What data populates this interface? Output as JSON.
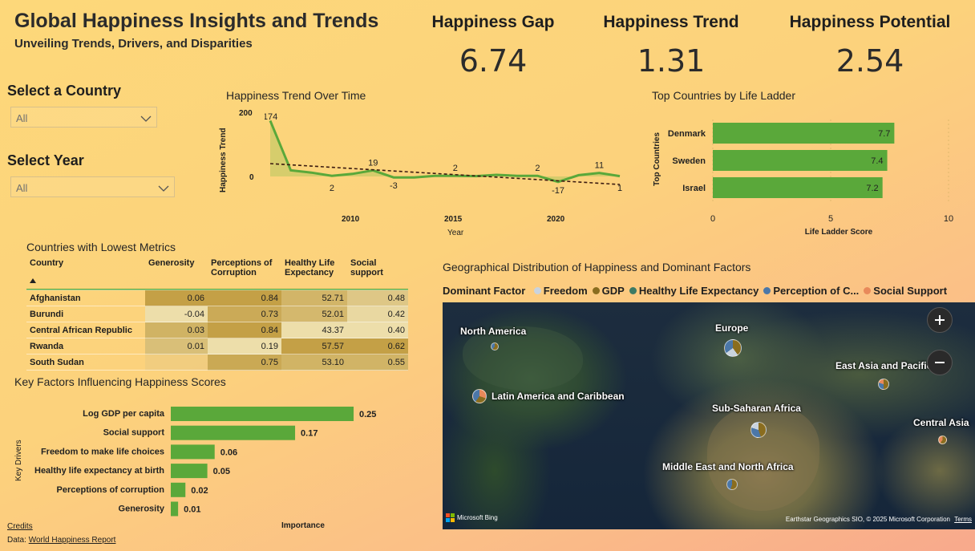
{
  "header": {
    "title": "Global Happiness Insights and Trends",
    "subtitle": "Unveiling Trends, Drivers, and Disparities"
  },
  "kpis": [
    {
      "label": "Happiness Gap",
      "value": "6.74"
    },
    {
      "label": "Happiness Trend",
      "value": "1.31"
    },
    {
      "label": "Happiness Potential",
      "value": "2.54"
    }
  ],
  "slicers": {
    "country": {
      "label": "Select a Country",
      "value": "All"
    },
    "year": {
      "label": "Select Year",
      "value": "All"
    }
  },
  "trend_chart": {
    "title": "Happiness Trend Over Time",
    "ylabel": "Happiness Trend",
    "xlabel": "Year",
    "y_ticks": [
      "200",
      "0"
    ],
    "x_ticks": [
      "2010",
      "2015",
      "2020"
    ]
  },
  "top_countries": {
    "title": "Top Countries by Life Ladder",
    "ylabel": "Top Countries",
    "xlabel": "Life Ladder Score",
    "x_ticks": [
      "0",
      "5",
      "10"
    ]
  },
  "lowest_metrics": {
    "title": "Countries with Lowest Metrics",
    "columns": [
      "Country",
      "Generosity",
      "Perceptions of Corruption",
      "Healthy Life Expectancy",
      "Social support"
    ],
    "column_lines": [
      [
        "Country"
      ],
      [
        "Generosity"
      ],
      [
        "Perceptions of",
        "Corruption"
      ],
      [
        "Healthy Life",
        "Expectancy"
      ],
      [
        "Social",
        "support"
      ]
    ],
    "rows": [
      {
        "country": "Afghanistan",
        "generosity": "0.06",
        "corruption": "0.84",
        "life": "52.71",
        "social": "0.48"
      },
      {
        "country": "Burundi",
        "generosity": "-0.04",
        "corruption": "0.73",
        "life": "52.01",
        "social": "0.42"
      },
      {
        "country": "Central African Republic",
        "generosity": "0.03",
        "corruption": "0.84",
        "life": "43.37",
        "social": "0.40"
      },
      {
        "country": "Rwanda",
        "generosity": "0.01",
        "corruption": "0.19",
        "life": "57.57",
        "social": "0.62"
      },
      {
        "country": "South Sudan",
        "generosity": "",
        "corruption": "0.75",
        "life": "53.10",
        "social": "0.55"
      }
    ]
  },
  "key_factors": {
    "title": "Key Factors Influencing Happiness Scores",
    "ylabel": "Key Drivers",
    "xlabel": "Importance"
  },
  "map_section": {
    "title": "Geographical Distribution of Happiness and Dominant Factors",
    "legend_title": "Dominant Factor",
    "legend": [
      {
        "name": "Freedom",
        "color": "#c9d3de"
      },
      {
        "name": "GDP",
        "color": "#8a6d1f"
      },
      {
        "name": "Healthy Life Expectancy",
        "color": "#3c7a64"
      },
      {
        "name": "Perception of C...",
        "color": "#4b77a8"
      },
      {
        "name": "Social Support",
        "color": "#e8895a"
      }
    ],
    "regions": [
      "North America",
      "Europe",
      "East Asia and Pacific",
      "Latin America and Caribbean",
      "Sub-Saharan Africa",
      "Central Asia",
      "Middle East and North Africa"
    ],
    "provider": "Microsoft Bing",
    "attribution": "Earthstar Geographics SIO, © 2025 Microsoft Corporation",
    "terms": "Terms"
  },
  "footer": {
    "credits": "Credits",
    "data_label": "Data:",
    "data_link": "World Happiness Report"
  },
  "chart_data": [
    {
      "type": "line",
      "title": "Happiness Trend Over Time",
      "xlabel": "Year",
      "ylabel": "Happiness Trend",
      "x": [
        2006,
        2007,
        2008,
        2009,
        2010,
        2011,
        2012,
        2013,
        2014,
        2015,
        2016,
        2017,
        2018,
        2019,
        2020,
        2021,
        2022,
        2023
      ],
      "series": [
        {
          "values": [
            174,
            19,
            12,
            2,
            8,
            19,
            -3,
            -3,
            2,
            2,
            1,
            5,
            2,
            2,
            -17,
            4,
            11,
            1
          ]
        }
      ],
      "data_labels": [
        {
          "x": 2006,
          "label": "174"
        },
        {
          "x": 2009,
          "label": "2"
        },
        {
          "x": 2011,
          "label": "19"
        },
        {
          "x": 2012,
          "label": "-3"
        },
        {
          "x": 2015,
          "label": "2"
        },
        {
          "x": 2019,
          "label": "2"
        },
        {
          "x": 2020,
          "label": "-17"
        },
        {
          "x": 2022,
          "label": "11"
        },
        {
          "x": 2023,
          "label": "1"
        }
      ],
      "trendline": [
        40,
        -25
      ],
      "ylim": [
        -40,
        200
      ],
      "color": "#5aa83a"
    },
    {
      "type": "bar",
      "title": "Top Countries by Life Ladder",
      "orientation": "horizontal",
      "categories": [
        "Denmark",
        "Sweden",
        "Israel"
      ],
      "values": [
        7.7,
        7.4,
        7.2
      ],
      "xlim": [
        0,
        10
      ],
      "xlabel": "Life Ladder Score",
      "ylabel": "Top Countries",
      "color": "#5aa83a"
    },
    {
      "type": "bar",
      "title": "Key Factors Influencing Happiness Scores",
      "orientation": "horizontal",
      "categories": [
        "Log GDP per capita",
        "Social support",
        "Freedom to make life choices",
        "Healthy life expectancy at birth",
        "Perceptions of corruption",
        "Generosity"
      ],
      "values": [
        0.25,
        0.17,
        0.06,
        0.05,
        0.02,
        0.01
      ],
      "xlabel": "Importance",
      "ylabel": "Key Drivers",
      "color": "#5aa83a"
    }
  ]
}
